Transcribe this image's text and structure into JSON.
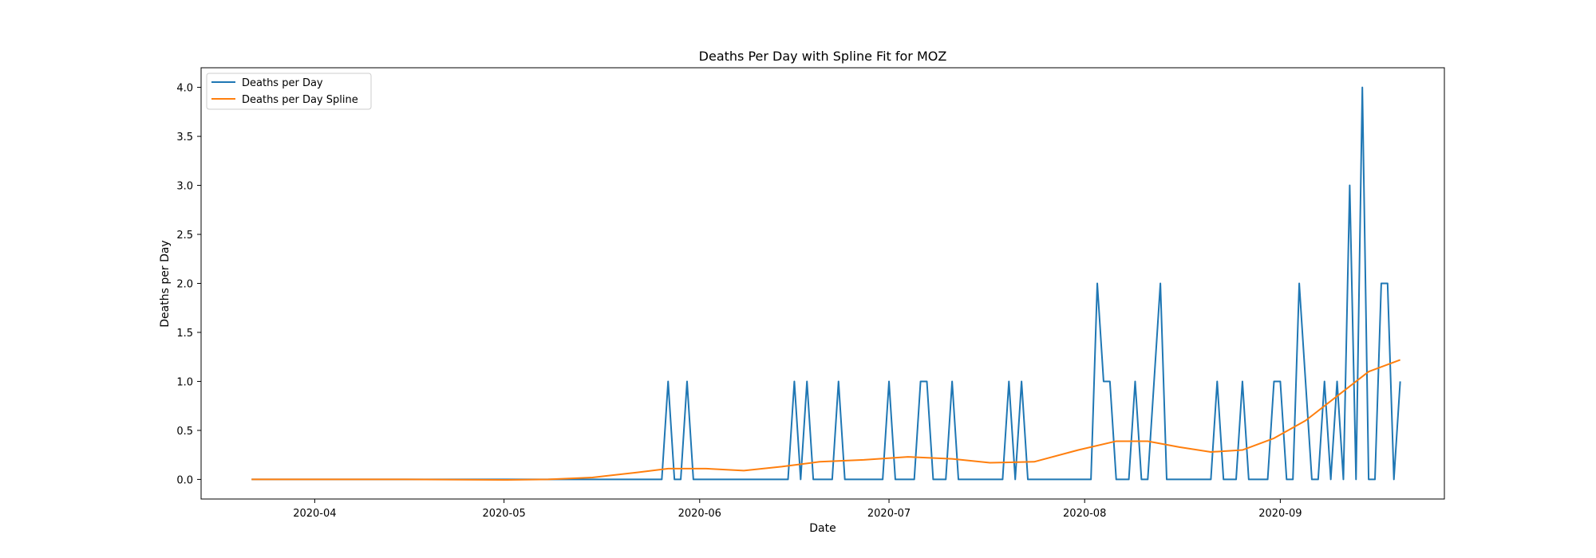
{
  "chart_data": {
    "type": "line",
    "title": "Deaths Per Day with Spline Fit for MOZ",
    "xlabel": "Date",
    "ylabel": "Deaths per Day",
    "x_range": [
      "2020-03-14",
      "2020-09-27"
    ],
    "ylim": [
      -0.2,
      4.2
    ],
    "x_ticks": [
      "2020-04",
      "2020-05",
      "2020-06",
      "2020-07",
      "2020-08",
      "2020-09"
    ],
    "y_ticks": [
      "0.0",
      "0.5",
      "1.0",
      "1.5",
      "2.0",
      "2.5",
      "3.0",
      "3.5",
      "4.0"
    ],
    "grid": false,
    "legend_position": "top-left",
    "series": [
      {
        "name": "Deaths per Day",
        "color": "#1f77b4",
        "points": [
          [
            "2020-03-22",
            0
          ],
          [
            "2020-05-26",
            0
          ],
          [
            "2020-05-27",
            1
          ],
          [
            "2020-05-28",
            0
          ],
          [
            "2020-05-29",
            0
          ],
          [
            "2020-05-30",
            1
          ],
          [
            "2020-05-31",
            0
          ],
          [
            "2020-06-15",
            0
          ],
          [
            "2020-06-16",
            1
          ],
          [
            "2020-06-17",
            0
          ],
          [
            "2020-06-18",
            1
          ],
          [
            "2020-06-19",
            0
          ],
          [
            "2020-06-22",
            0
          ],
          [
            "2020-06-23",
            1
          ],
          [
            "2020-06-24",
            0
          ],
          [
            "2020-06-30",
            0
          ],
          [
            "2020-07-01",
            1
          ],
          [
            "2020-07-02",
            0
          ],
          [
            "2020-07-05",
            0
          ],
          [
            "2020-07-06",
            1
          ],
          [
            "2020-07-07",
            1
          ],
          [
            "2020-07-08",
            0
          ],
          [
            "2020-07-10",
            0
          ],
          [
            "2020-07-11",
            1
          ],
          [
            "2020-07-12",
            0
          ],
          [
            "2020-07-19",
            0
          ],
          [
            "2020-07-20",
            1
          ],
          [
            "2020-07-21",
            0
          ],
          [
            "2020-07-22",
            1
          ],
          [
            "2020-07-23",
            0
          ],
          [
            "2020-08-02",
            0
          ],
          [
            "2020-08-03",
            2
          ],
          [
            "2020-08-04",
            1
          ],
          [
            "2020-08-05",
            1
          ],
          [
            "2020-08-06",
            0
          ],
          [
            "2020-08-08",
            0
          ],
          [
            "2020-08-09",
            1
          ],
          [
            "2020-08-10",
            0
          ],
          [
            "2020-08-11",
            0
          ],
          [
            "2020-08-13",
            2
          ],
          [
            "2020-08-14",
            0
          ],
          [
            "2020-08-21",
            0
          ],
          [
            "2020-08-22",
            1
          ],
          [
            "2020-08-23",
            0
          ],
          [
            "2020-08-25",
            0
          ],
          [
            "2020-08-26",
            1
          ],
          [
            "2020-08-27",
            0
          ],
          [
            "2020-08-30",
            0
          ],
          [
            "2020-08-31",
            1
          ],
          [
            "2020-09-01",
            1
          ],
          [
            "2020-09-02",
            0
          ],
          [
            "2020-09-03",
            0
          ],
          [
            "2020-09-04",
            2
          ],
          [
            "2020-09-06",
            0
          ],
          [
            "2020-09-07",
            0
          ],
          [
            "2020-09-08",
            1
          ],
          [
            "2020-09-09",
            0
          ],
          [
            "2020-09-10",
            1
          ],
          [
            "2020-09-11",
            0
          ],
          [
            "2020-09-12",
            3
          ],
          [
            "2020-09-13",
            0
          ],
          [
            "2020-09-14",
            4
          ],
          [
            "2020-09-15",
            0
          ],
          [
            "2020-09-16",
            0
          ],
          [
            "2020-09-17",
            2
          ],
          [
            "2020-09-18",
            2
          ],
          [
            "2020-09-19",
            0
          ],
          [
            "2020-09-20",
            1
          ]
        ]
      },
      {
        "name": "Deaths per Day Spline",
        "color": "#ff7f0e",
        "points": [
          [
            "2020-03-22",
            0.0
          ],
          [
            "2020-04-15",
            0.0
          ],
          [
            "2020-05-01",
            -0.005
          ],
          [
            "2020-05-08",
            0.0
          ],
          [
            "2020-05-15",
            0.02
          ],
          [
            "2020-05-22",
            0.07
          ],
          [
            "2020-05-27",
            0.11
          ],
          [
            "2020-06-02",
            0.11
          ],
          [
            "2020-06-08",
            0.09
          ],
          [
            "2020-06-14",
            0.13
          ],
          [
            "2020-06-20",
            0.18
          ],
          [
            "2020-06-27",
            0.2
          ],
          [
            "2020-07-04",
            0.23
          ],
          [
            "2020-07-11",
            0.21
          ],
          [
            "2020-07-17",
            0.17
          ],
          [
            "2020-07-24",
            0.18
          ],
          [
            "2020-07-31",
            0.3
          ],
          [
            "2020-08-06",
            0.39
          ],
          [
            "2020-08-11",
            0.39
          ],
          [
            "2020-08-16",
            0.33
          ],
          [
            "2020-08-21",
            0.28
          ],
          [
            "2020-08-26",
            0.3
          ],
          [
            "2020-08-31",
            0.42
          ],
          [
            "2020-09-05",
            0.6
          ],
          [
            "2020-09-10",
            0.85
          ],
          [
            "2020-09-15",
            1.1
          ],
          [
            "2020-09-20",
            1.22
          ]
        ]
      }
    ]
  }
}
